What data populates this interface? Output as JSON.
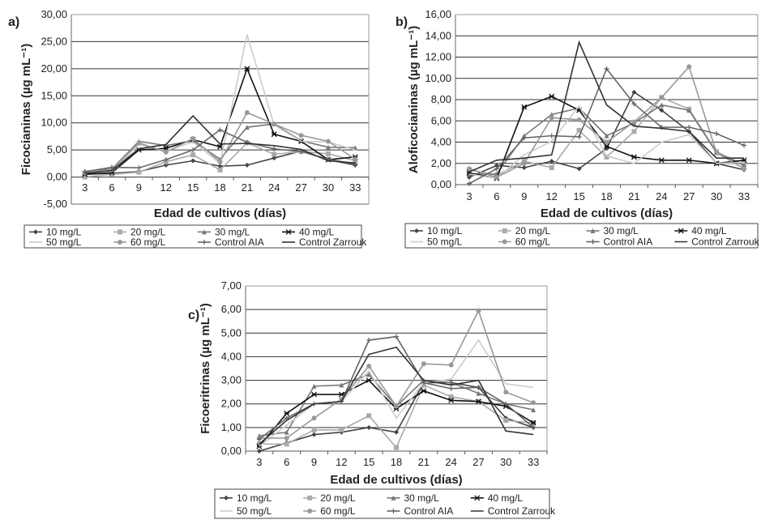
{
  "chart_data": [
    {
      "type": "line",
      "panel_label": "a)",
      "ylabel": "Ficocianinas (µg mL⁻¹)",
      "xlabel": "Edad de cultivos (días)",
      "x": [
        3,
        6,
        9,
        12,
        15,
        18,
        21,
        24,
        27,
        30,
        33
      ],
      "ylim": [
        -5,
        30
      ],
      "ystep": 5,
      "grid": true,
      "legend_position": "bottom",
      "series": [
        {
          "name": "10 mg/L",
          "color": "#444444",
          "marker": "diamond",
          "values": [
            0.5,
            0.7,
            1.0,
            2.2,
            3.0,
            2.0,
            2.2,
            3.5,
            4.8,
            3.2,
            2.2
          ]
        },
        {
          "name": "20 mg/L",
          "color": "#aaaaaa",
          "marker": "square",
          "values": [
            0.0,
            0.5,
            0.9,
            2.8,
            4.1,
            1.3,
            6.3,
            4.2,
            4.7,
            4.3,
            3.0
          ]
        },
        {
          "name": "30 mg/L",
          "color": "#777777",
          "marker": "triangle",
          "values": [
            1.0,
            1.5,
            6.6,
            5.8,
            6.7,
            3.3,
            9.2,
            9.8,
            6.7,
            5.5,
            5.4
          ]
        },
        {
          "name": "40 mg/L",
          "color": "#111111",
          "marker": "star",
          "values": [
            0.5,
            0.8,
            5.0,
            5.3,
            6.9,
            5.6,
            20.0,
            7.9,
            6.6,
            3.2,
            3.7
          ]
        },
        {
          "name": "50 mg/L",
          "color": "#cccccc",
          "marker": "none",
          "values": [
            1.2,
            1.0,
            6.0,
            4.8,
            6.5,
            2.5,
            26.3,
            9.6,
            6.6,
            6.5,
            5.0
          ]
        },
        {
          "name": "60 mg/L",
          "color": "#999999",
          "marker": "circle",
          "values": [
            0.8,
            1.4,
            6.3,
            4.6,
            7.1,
            2.8,
            11.9,
            9.8,
            7.7,
            6.6,
            3.3
          ]
        },
        {
          "name": "Control AIA",
          "color": "#666666",
          "marker": "plus",
          "values": [
            1.0,
            1.8,
            1.7,
            3.2,
            5.0,
            8.7,
            6.4,
            5.2,
            4.7,
            3.3,
            2.4
          ]
        },
        {
          "name": "Control Zarrouk",
          "color": "#333333",
          "marker": "none",
          "values": [
            0.7,
            1.2,
            5.2,
            6.0,
            11.3,
            6.1,
            6.2,
            5.8,
            5.1,
            3.0,
            2.6
          ]
        }
      ]
    },
    {
      "type": "line",
      "panel_label": "b)",
      "ylabel": "Aloficocianinas (µg mL⁻¹)",
      "xlabel": "Edad de cultivos (días)",
      "x": [
        3,
        6,
        9,
        12,
        15,
        18,
        21,
        24,
        27,
        30,
        33
      ],
      "ylim": [
        0,
        16
      ],
      "ystep": 2,
      "grid": true,
      "legend_position": "bottom",
      "series": [
        {
          "name": "10 mg/L",
          "color": "#444444",
          "marker": "diamond",
          "values": [
            0.7,
            1.8,
            1.6,
            2.2,
            1.5,
            3.4,
            8.7,
            7.0,
            5.0,
            2.0,
            1.4
          ]
        },
        {
          "name": "20 mg/L",
          "color": "#aaaaaa",
          "marker": "square",
          "values": [
            1.4,
            0.9,
            2.2,
            1.6,
            5.1,
            2.6,
            5.0,
            8.2,
            7.1,
            3.1,
            1.9
          ]
        },
        {
          "name": "30 mg/L",
          "color": "#777777",
          "marker": "triangle",
          "values": [
            1.0,
            1.0,
            4.6,
            6.6,
            7.2,
            4.6,
            5.8,
            7.5,
            7.0,
            3.0,
            1.8
          ]
        },
        {
          "name": "40 mg/L",
          "color": "#111111",
          "marker": "star",
          "values": [
            1.1,
            0.6,
            7.3,
            8.3,
            7.0,
            3.6,
            2.6,
            2.3,
            2.3,
            2.0,
            2.3
          ]
        },
        {
          "name": "50 mg/L",
          "color": "#cccccc",
          "marker": "none",
          "values": [
            1.0,
            0.6,
            2.8,
            4.1,
            7.4,
            2.7,
            2.0,
            4.0,
            4.7,
            2.0,
            2.1
          ]
        },
        {
          "name": "60 mg/L",
          "color": "#999999",
          "marker": "circle",
          "values": [
            1.5,
            0.7,
            2.0,
            6.3,
            6.1,
            4.0,
            5.9,
            8.2,
            11.1,
            3.0,
            1.5
          ]
        },
        {
          "name": "Control AIA",
          "color": "#666666",
          "marker": "plus",
          "values": [
            0.1,
            1.5,
            4.4,
            4.6,
            4.5,
            10.9,
            7.6,
            5.4,
            5.4,
            4.8,
            3.7
          ]
        },
        {
          "name": "Control Zarrouk",
          "color": "#333333",
          "marker": "none",
          "values": [
            1.2,
            2.3,
            2.5,
            2.8,
            13.4,
            7.5,
            5.5,
            5.3,
            5.0,
            2.5,
            2.5
          ]
        }
      ]
    },
    {
      "type": "line",
      "panel_label": "c)",
      "ylabel": "Ficoeritrinas (µg mL⁻¹)",
      "xlabel": "Edad de cultivos (días)",
      "x": [
        3,
        6,
        9,
        12,
        15,
        18,
        21,
        24,
        27,
        30,
        33
      ],
      "ylim": [
        0,
        7
      ],
      "ystep": 1,
      "grid": true,
      "legend_position": "bottom",
      "series": [
        {
          "name": "10 mg/L",
          "color": "#444444",
          "marker": "diamond",
          "values": [
            0.0,
            0.35,
            0.7,
            0.8,
            1.0,
            0.8,
            2.9,
            2.9,
            2.7,
            1.4,
            1.0
          ]
        },
        {
          "name": "20 mg/L",
          "color": "#aaaaaa",
          "marker": "square",
          "values": [
            0.3,
            0.3,
            0.9,
            0.9,
            1.5,
            0.15,
            2.8,
            2.3,
            2.1,
            1.3,
            1.2
          ]
        },
        {
          "name": "30 mg/L",
          "color": "#777777",
          "marker": "triangle",
          "values": [
            0.65,
            0.8,
            2.75,
            2.8,
            3.25,
            1.9,
            3.0,
            2.9,
            2.45,
            2.0,
            1.75
          ]
        },
        {
          "name": "40 mg/L",
          "color": "#111111",
          "marker": "star",
          "values": [
            0.2,
            1.6,
            2.4,
            2.4,
            3.0,
            1.8,
            2.55,
            2.15,
            2.1,
            1.9,
            1.2
          ]
        },
        {
          "name": "50 mg/L",
          "color": "#cccccc",
          "marker": "none",
          "values": [
            0.2,
            1.1,
            2.0,
            2.1,
            3.4,
            1.4,
            2.9,
            3.05,
            4.7,
            2.85,
            2.7
          ]
        },
        {
          "name": "60 mg/L",
          "color": "#999999",
          "marker": "circle",
          "values": [
            0.55,
            0.55,
            1.4,
            2.2,
            3.6,
            1.9,
            3.7,
            3.65,
            5.95,
            2.5,
            2.05
          ]
        },
        {
          "name": "Control AIA",
          "color": "#666666",
          "marker": "plus",
          "values": [
            0.5,
            1.4,
            2.0,
            2.1,
            4.7,
            4.85,
            2.9,
            2.65,
            2.7,
            2.0,
            1.0
          ]
        },
        {
          "name": "Control Zarrouk",
          "color": "#333333",
          "marker": "none",
          "values": [
            0.3,
            1.3,
            2.0,
            2.1,
            4.1,
            4.4,
            3.0,
            2.8,
            3.0,
            0.85,
            0.7
          ]
        }
      ]
    }
  ]
}
